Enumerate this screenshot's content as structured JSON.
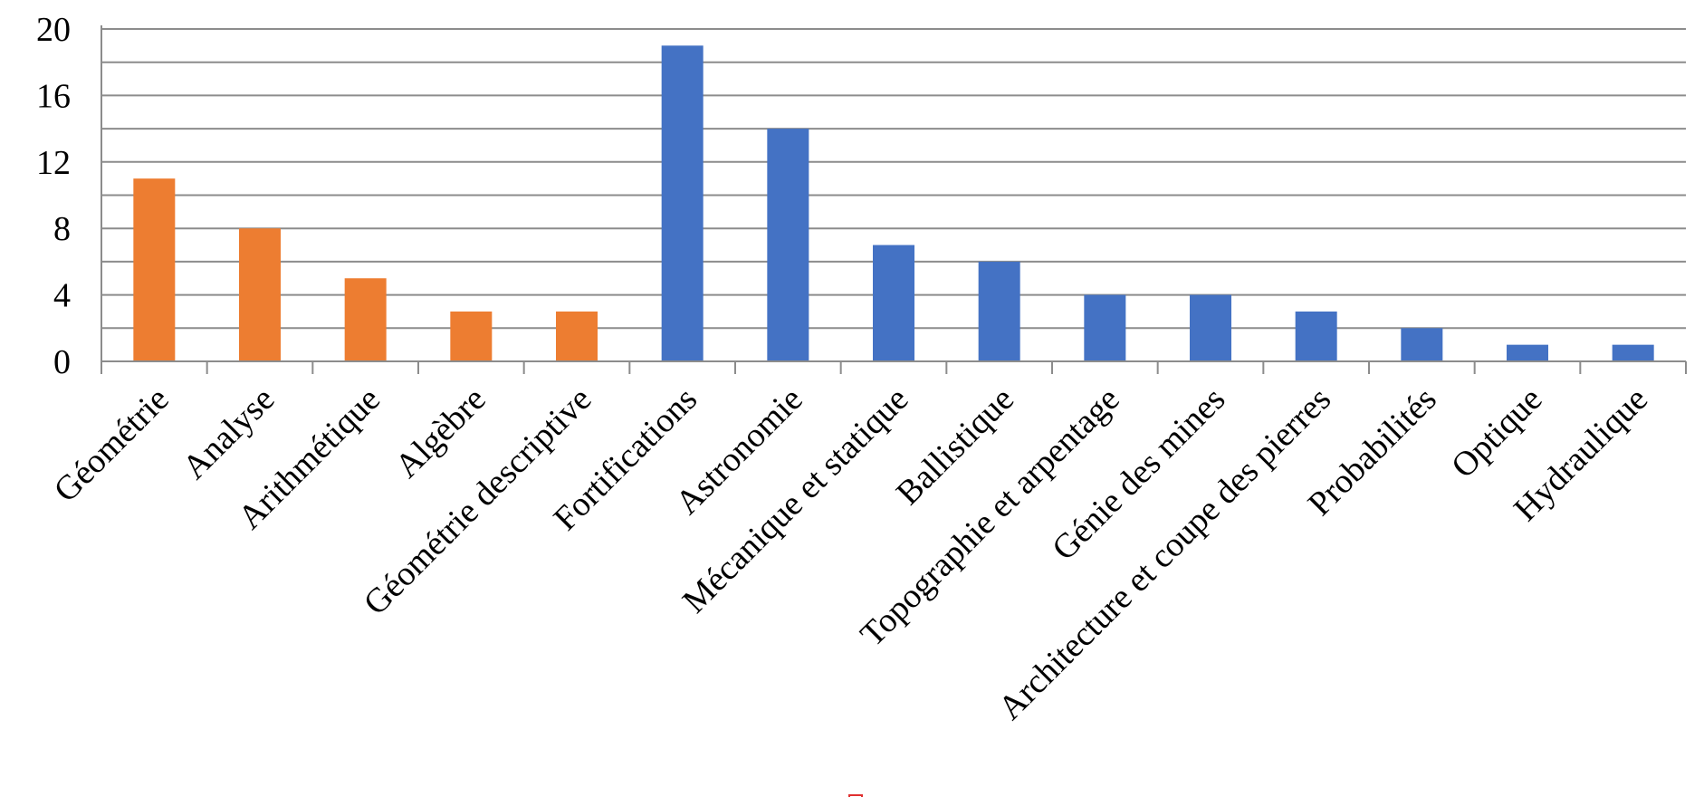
{
  "chart_data": {
    "type": "bar",
    "title": "",
    "xlabel": "",
    "ylabel": "",
    "ylim": [
      0,
      20
    ],
    "y_ticks": [
      "0",
      "4",
      "8",
      "12",
      "16",
      "20"
    ],
    "grid": true,
    "categories": [
      "Géométrie",
      "Analyse",
      "Arithmétique",
      "Algèbre",
      "Géométrie descriptive",
      "Fortifications",
      "Astronomie",
      "Mécanique et statique",
      "Ballistique",
      "Topographie et arpentage",
      "Génie des mines",
      "Architecture et coupe des pierres",
      "Probabilités",
      "Optique",
      "Hydraulique"
    ],
    "values": [
      11,
      8,
      5,
      3,
      3,
      19,
      14,
      7,
      6,
      4,
      4,
      3,
      2,
      1,
      1
    ],
    "bar_colors": [
      "#ED7D31",
      "#ED7D31",
      "#ED7D31",
      "#ED7D31",
      "#ED7D31",
      "#4472C4",
      "#4472C4",
      "#4472C4",
      "#4472C4",
      "#4472C4",
      "#4472C4",
      "#4472C4",
      "#4472C4",
      "#4472C4",
      "#4472C4"
    ],
    "colors": {
      "orange": "#ED7D31",
      "blue": "#4472C4",
      "grid": "#8c8c8c",
      "marker": "#e03030"
    }
  }
}
